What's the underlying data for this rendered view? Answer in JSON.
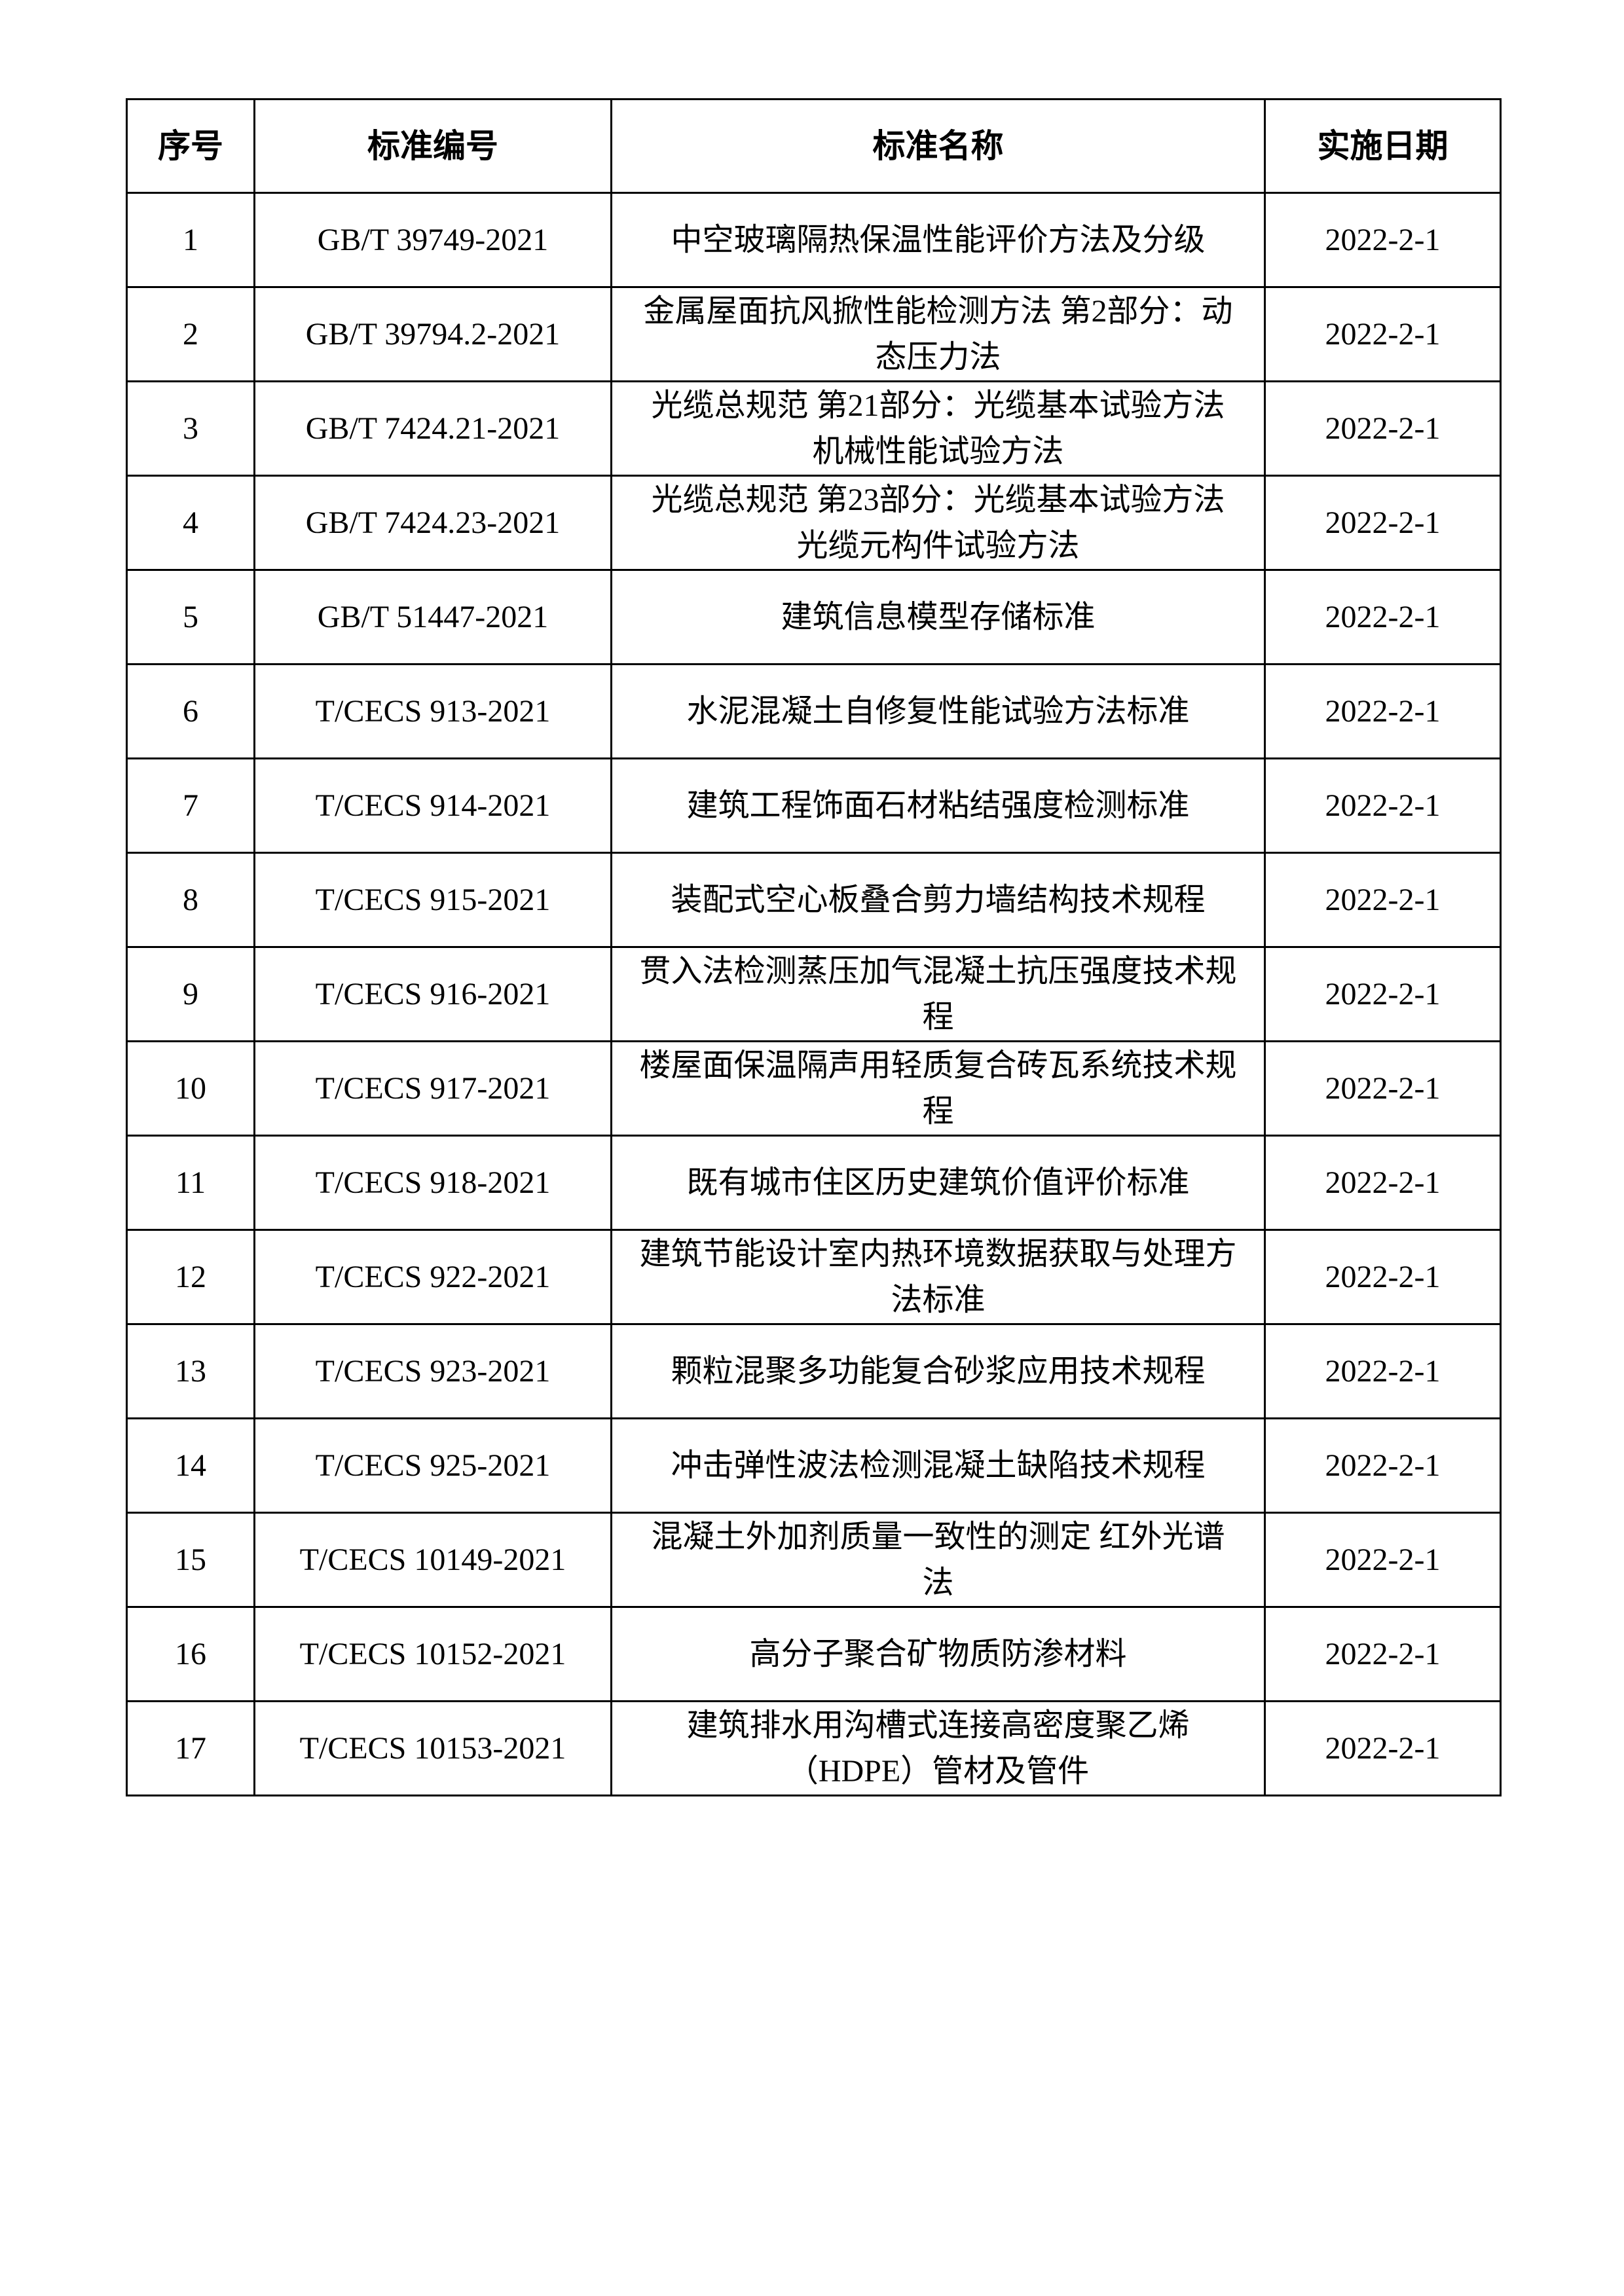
{
  "document": {
    "background_color": "#ffffff",
    "text_color": "#000000",
    "border_color": "#000000"
  },
  "table": {
    "columns": [
      {
        "key": "no",
        "label": "序号"
      },
      {
        "key": "code",
        "label": "标准编号"
      },
      {
        "key": "name",
        "label": "标准名称"
      },
      {
        "key": "date",
        "label": "实施日期"
      }
    ],
    "rows": [
      {
        "no": "1",
        "code": "GB/T 39749-2021",
        "name": "中空玻璃隔热保温性能评价方法及分级",
        "date": "2022-2-1"
      },
      {
        "no": "2",
        "code": "GB/T 39794.2-2021",
        "name": "金属屋面抗风掀性能检测方法 第2部分：动态压力法",
        "date": "2022-2-1"
      },
      {
        "no": "3",
        "code": "GB/T 7424.21-2021",
        "name": "光缆总规范 第21部分：光缆基本试验方法 机械性能试验方法",
        "date": "2022-2-1"
      },
      {
        "no": "4",
        "code": "GB/T 7424.23-2021",
        "name": "光缆总规范 第23部分：光缆基本试验方法 光缆元构件试验方法",
        "date": "2022-2-1"
      },
      {
        "no": "5",
        "code": "GB/T 51447-2021",
        "name": "建筑信息模型存储标准",
        "date": "2022-2-1"
      },
      {
        "no": "6",
        "code": "T/CECS 913-2021",
        "name": "水泥混凝土自修复性能试验方法标准",
        "date": "2022-2-1"
      },
      {
        "no": "7",
        "code": "T/CECS 914-2021",
        "name": "建筑工程饰面石材粘结强度检测标准",
        "date": "2022-2-1"
      },
      {
        "no": "8",
        "code": "T/CECS 915-2021",
        "name": "装配式空心板叠合剪力墙结构技术规程",
        "date": "2022-2-1"
      },
      {
        "no": "9",
        "code": "T/CECS 916-2021",
        "name": "贯入法检测蒸压加气混凝土抗压强度技术规程",
        "date": "2022-2-1"
      },
      {
        "no": "10",
        "code": "T/CECS 917-2021",
        "name": "楼屋面保温隔声用轻质复合砖瓦系统技术规程",
        "date": "2022-2-1"
      },
      {
        "no": "11",
        "code": "T/CECS 918-2021",
        "name": "既有城市住区历史建筑价值评价标准",
        "date": "2022-2-1"
      },
      {
        "no": "12",
        "code": "T/CECS 922-2021",
        "name": "建筑节能设计室内热环境数据获取与处理方法标准",
        "date": "2022-2-1"
      },
      {
        "no": "13",
        "code": "T/CECS 923-2021",
        "name": "颗粒混聚多功能复合砂浆应用技术规程",
        "date": "2022-2-1"
      },
      {
        "no": "14",
        "code": "T/CECS 925-2021",
        "name": "冲击弹性波法检测混凝土缺陷技术规程",
        "date": "2022-2-1"
      },
      {
        "no": "15",
        "code": "T/CECS 10149-2021",
        "name": "混凝土外加剂质量一致性的测定 红外光谱法",
        "date": "2022-2-1"
      },
      {
        "no": "16",
        "code": "T/CECS 10152-2021",
        "name": "高分子聚合矿物质防渗材料",
        "date": "2022-2-1"
      },
      {
        "no": "17",
        "code": "T/CECS 10153-2021",
        "name": "建筑排水用沟槽式连接高密度聚乙烯（HDPE）管材及管件",
        "date": "2022-2-1"
      }
    ]
  }
}
